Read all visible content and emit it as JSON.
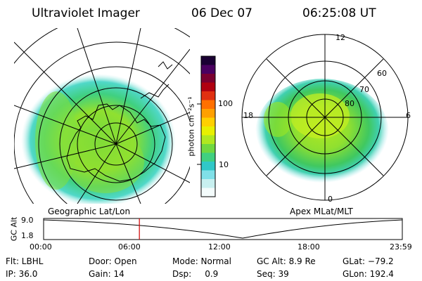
{
  "header": {
    "instrument": "Ultraviolet Imager",
    "date": "06 Dec 07",
    "time": "06:25:08 UT"
  },
  "left_panel": {
    "caption": "Geographic Lat/Lon"
  },
  "right_panel": {
    "caption": "Apex MLat/MLT",
    "mlt_labels": [
      "12",
      "18",
      "6",
      "0"
    ],
    "mlat_labels": [
      "60",
      "70",
      "80"
    ]
  },
  "colorbar": {
    "unit_label": "photon cm⁻²s⁻¹",
    "tick_labels": [
      "100",
      "10"
    ],
    "colors": [
      "#1a0033",
      "#4a0060",
      "#7a0030",
      "#b00010",
      "#e03010",
      "#ff7000",
      "#ffa000",
      "#ffd000",
      "#e8f000",
      "#b0e820",
      "#70d840",
      "#40d080",
      "#30c8c8",
      "#80e0e8",
      "#c8f0f0",
      "#f4fcfc"
    ]
  },
  "gc_alt_plot": {
    "ylabel": "GC Alt",
    "y_ticks": [
      "9.0",
      "1.8"
    ],
    "x_ticks": [
      "00:00",
      "06:00",
      "12:00",
      "18:00",
      "23:59"
    ],
    "current_marker_fraction": 0.267
  },
  "info": {
    "row1": [
      "Flt: LBHL",
      "Door: Open",
      "Mode: Normal",
      "GC Alt: 8.9 Re",
      "GLat: −79.2"
    ],
    "row2": [
      "IP: 36.0",
      "Gain: 14",
      "Dsp:     0.9",
      "Seq: 39",
      "GLon: 192.4"
    ]
  }
}
